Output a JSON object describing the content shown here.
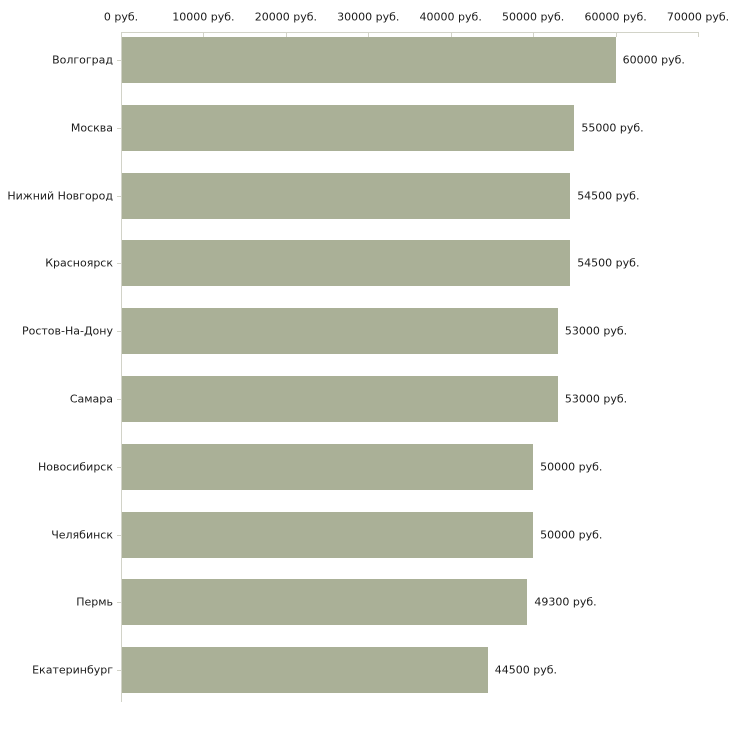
{
  "chart_data": {
    "type": "bar",
    "orientation": "horizontal",
    "title": "",
    "xlabel": "",
    "ylabel": "",
    "xlim": [
      0,
      70000
    ],
    "grid": false,
    "legend": "none",
    "categories": [
      "Волгоград",
      "Москва",
      "Нижний Новгород",
      "Красноярск",
      "Ростов-На-Дону",
      "Самара",
      "Новосибирск",
      "Челябинск",
      "Пермь",
      "Екатеринбург"
    ],
    "values": [
      60000,
      55000,
      54500,
      54500,
      53000,
      53000,
      50000,
      50000,
      49300,
      44500
    ],
    "value_labels": [
      "60000 руб.",
      "55000 руб.",
      "54500 руб.",
      "54500 руб.",
      "53000 руб.",
      "53000 руб.",
      "50000 руб.",
      "50000 руб.",
      "49300 руб.",
      "44500 руб."
    ],
    "x_tick_values": [
      0,
      10000,
      20000,
      30000,
      40000,
      50000,
      60000,
      70000
    ],
    "x_tick_labels": [
      "0 руб.",
      "10000 руб.",
      "20000 руб.",
      "30000 руб.",
      "40000 руб.",
      "50000 руб.",
      "60000 руб.",
      "70000 руб."
    ],
    "colors": {
      "bar": "#aab097",
      "axis": "#d2d3c8",
      "text": "#1c1c1c",
      "background": "#ffffff"
    }
  }
}
